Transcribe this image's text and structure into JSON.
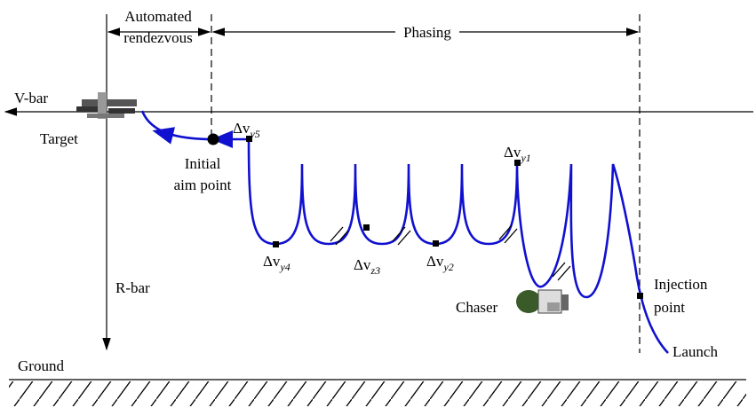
{
  "header": {
    "segments": [
      {
        "lines": [
          "Automated",
          "rendezvous"
        ]
      },
      {
        "lines": [
          "Phasing"
        ]
      }
    ]
  },
  "axes": {
    "v_bar": "V-bar",
    "r_bar": "R-bar",
    "ground": "Ground"
  },
  "objects": {
    "target": "Target",
    "chaser": "Chaser",
    "aim_point": {
      "lines": [
        "Initial",
        "aim point"
      ]
    },
    "injection": {
      "lines": [
        "Injection",
        "point"
      ]
    },
    "launch": "Launch"
  },
  "maneuvers": [
    {
      "symbol": "Δv",
      "subscript": "y5"
    },
    {
      "symbol": "Δv",
      "subscript": "y4"
    },
    {
      "symbol": "Δv",
      "subscript": "z3"
    },
    {
      "symbol": "Δv",
      "subscript": "y2"
    },
    {
      "symbol": "Δv",
      "subscript": "y1"
    }
  ]
}
